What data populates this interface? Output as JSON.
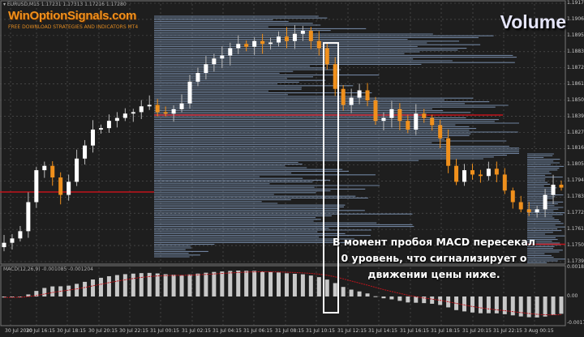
{
  "header": {
    "symbol_line": "▾ EURUSD,M15  1.17231 1.17313 1.17216 1.17280"
  },
  "branding": {
    "site": "WinOptionSignals.com",
    "tagline": "FREE DOWNLOAD STRATEGIES AND INDICATORS MT4"
  },
  "overlay_title": "Volume",
  "annotation": {
    "lines": [
      "В момент пробоя MACD пересекал",
      "0 уровень, что сигнализирует о",
      "движении цены ниже."
    ]
  },
  "macd_label": "MACD(12,26,9) -0.001085 -0.001204",
  "colors": {
    "background": "#1e1e1e",
    "bull": "#ffffff",
    "bear": "#f0901c",
    "profile": "#8aa4c8",
    "poc": "#c0141c",
    "macd_hist": "#c8c8c8",
    "macd_signal": "#c0141c",
    "grid": "#5a5a5a"
  },
  "chart_data": {
    "type": "candlestick",
    "price_axis": [
      "1.19170",
      "1.19060",
      "1.18950",
      "1.18835",
      "1.18725",
      "1.18615",
      "1.18500",
      "1.18390",
      "1.18275",
      "1.18165",
      "1.18055",
      "1.17940",
      "1.17830",
      "1.17720",
      "1.17610",
      "1.17500",
      "1.17390"
    ],
    "ylim": [
      1.1739,
      1.1917
    ],
    "macd_axis": [
      "0.001868",
      "0.00",
      "-0.001747"
    ],
    "time_axis": [
      "30 Jul 2020",
      "30 Jul 16:15",
      "30 Jul 18:15",
      "30 Jul 20:15",
      "30 Jul 22:15",
      "31 Jul 00:15",
      "31 Jul 02:15",
      "31 Jul 04:15",
      "31 Jul 06:15",
      "31 Jul 08:15",
      "31 Jul 10:15",
      "31 Jul 12:15",
      "31 Jul 14:15",
      "31 Jul 16:15",
      "31 Jul 18:15",
      "31 Jul 20:15",
      "31 Jul 22:15",
      "3 Aug 00:15"
    ],
    "closes": [
      1.1752,
      1.1755,
      1.176,
      1.178,
      1.1802,
      1.1805,
      1.1797,
      1.1785,
      1.1794,
      1.181,
      1.1819,
      1.183,
      1.1831,
      1.1836,
      1.1838,
      1.1841,
      1.1842,
      1.1846,
      1.1847,
      1.1842,
      1.1841,
      1.1844,
      1.1848,
      1.1863,
      1.1869,
      1.1875,
      1.1879,
      1.1881,
      1.1886,
      1.1889,
      1.1887,
      1.1891,
      1.1889,
      1.189,
      1.1894,
      1.1891,
      1.1896,
      1.1898,
      1.1891,
      1.1886,
      1.1875,
      1.1858,
      1.1847,
      1.1852,
      1.1857,
      1.185,
      1.1836,
      1.1838,
      1.1844,
      1.1836,
      1.183,
      1.1841,
      1.1838,
      1.1833,
      1.1824,
      1.1805,
      1.1794,
      1.1802,
      1.1799,
      1.1798,
      1.1803,
      1.1799,
      1.1788,
      1.178,
      1.1775,
      1.1773,
      1.1775,
      1.1785,
      1.1792,
      1.179
    ],
    "levels": [
      1.1787,
      1.184,
      1.1751
    ],
    "grid": true
  }
}
